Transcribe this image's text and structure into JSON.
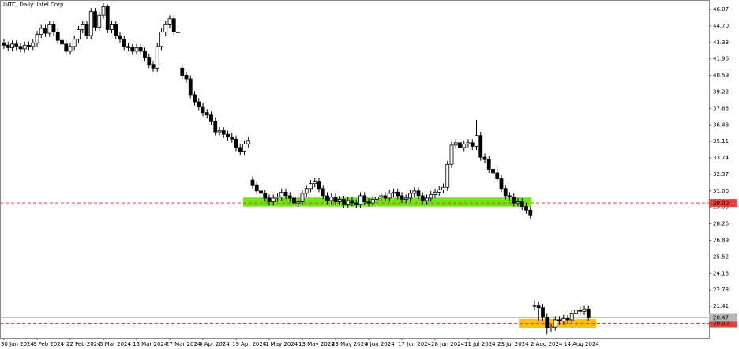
{
  "chart_data": {
    "type": "candlestick",
    "title": "INTC, Daily:  Intel Corp",
    "categories": [
      "30 Jan 2024",
      null,
      null,
      null,
      null,
      null,
      null,
      null,
      "9 Feb 2024",
      null,
      null,
      null,
      null,
      null,
      null,
      null,
      "22 Feb 2024",
      null,
      null,
      null,
      null,
      null,
      null,
      null,
      "5 Mar 2024",
      null,
      null,
      null,
      null,
      null,
      null,
      null,
      "15 Mar 2024",
      null,
      null,
      null,
      null,
      null,
      null,
      null,
      "27 Mar 2024",
      null,
      null,
      null,
      null,
      null,
      null,
      null,
      "9 Apr 2024",
      null,
      null,
      null,
      null,
      null,
      null,
      null,
      "19 Apr 2024",
      null,
      null,
      null,
      null,
      null,
      null,
      null,
      "1 May 2024",
      null,
      null,
      null,
      null,
      null,
      null,
      null,
      "13 May 2024",
      null,
      null,
      null,
      null,
      null,
      null,
      null,
      "23 May 2024",
      null,
      null,
      null,
      null,
      null,
      null,
      null,
      "5 Jun 2024",
      null,
      null,
      null,
      null,
      null,
      null,
      null,
      "17 Jun 2024",
      null,
      null,
      null,
      null,
      null,
      null,
      null,
      "28 Jun 2024",
      null,
      null,
      null,
      null,
      null,
      null,
      null,
      "11 Jul 2024",
      null,
      null,
      null,
      null,
      null,
      null,
      null,
      "23 Jul 2024",
      null,
      null,
      null,
      null,
      null,
      null,
      null,
      "2 Aug 2024",
      null,
      null,
      null,
      null,
      null,
      null,
      null,
      "14 Aug 2024",
      null,
      null,
      null,
      null,
      null
    ],
    "open": [
      43.3,
      43.1,
      42.9,
      43.2,
      43.0,
      42.8,
      43.1,
      43.0,
      43.3,
      44.0,
      44.5,
      44.1,
      44.8,
      44.2,
      43.5,
      43.2,
      42.6,
      43.0,
      43.6,
      44.4,
      44.8,
      43.9,
      45.9,
      44.6,
      45.6,
      46.3,
      44.4,
      44.8,
      43.9,
      43.6,
      43.0,
      42.9,
      42.6,
      42.9,
      42.6,
      42.1,
      41.5,
      41.2,
      43.0,
      44.2,
      44.8,
      45.3,
      44.2,
      41.2,
      40.6,
      40.3,
      39.0,
      38.4,
      38.0,
      37.5,
      37.3,
      36.8,
      35.9,
      36.0,
      35.7,
      35.5,
      35.3,
      34.6,
      34.3,
      34.9,
      31.9,
      31.5,
      31.0,
      30.8,
      30.4,
      30.1,
      30.4,
      30.5,
      30.9,
      30.6,
      30.4,
      30.0,
      30.1,
      30.8,
      31.2,
      31.6,
      31.8,
      31.2,
      30.6,
      30.2,
      30.5,
      30.1,
      30.3,
      29.9,
      30.2,
      30.0,
      29.9,
      30.6,
      30.1,
      30.0,
      30.3,
      30.5,
      30.6,
      30.4,
      30.8,
      30.9,
      30.6,
      30.3,
      30.4,
      30.8,
      31.0,
      30.6,
      30.2,
      30.4,
      30.7,
      30.9,
      31.1,
      31.3,
      33.2,
      34.8,
      35.0,
      34.6,
      34.9,
      35.0,
      34.7,
      35.6,
      33.8,
      33.6,
      32.8,
      32.5,
      32.0,
      31.2,
      30.6,
      30.5,
      30.0,
      30.1,
      29.7,
      29.4,
      21.4,
      21.5,
      21.3,
      20.5,
      19.6,
      19.7,
      20.3,
      20.2,
      20.4,
      20.3,
      20.8,
      21.1,
      21.0,
      21.2
    ],
    "high": [
      43.6,
      43.4,
      43.5,
      43.5,
      43.3,
      43.4,
      43.4,
      43.6,
      44.3,
      44.8,
      44.8,
      45.1,
      45.1,
      44.5,
      43.8,
      43.5,
      43.3,
      43.9,
      44.7,
      45.1,
      45.1,
      46.2,
      46.2,
      45.9,
      46.6,
      46.5,
      45.1,
      45.1,
      44.2,
      43.9,
      43.3,
      43.2,
      43.2,
      43.2,
      42.9,
      42.4,
      41.8,
      43.3,
      44.5,
      45.1,
      45.6,
      45.6,
      44.5,
      41.5,
      40.9,
      40.6,
      39.3,
      38.7,
      38.3,
      37.8,
      37.6,
      37.1,
      36.3,
      36.3,
      36.0,
      35.8,
      35.6,
      34.9,
      35.2,
      35.5,
      32.2,
      31.8,
      31.3,
      31.1,
      30.7,
      30.7,
      30.8,
      31.2,
      31.2,
      30.9,
      30.7,
      30.4,
      31.1,
      31.5,
      31.9,
      32.1,
      32.1,
      31.5,
      30.9,
      30.8,
      30.8,
      30.6,
      30.6,
      30.5,
      30.5,
      30.3,
      30.9,
      30.9,
      30.4,
      30.6,
      30.8,
      30.9,
      30.9,
      31.1,
      31.2,
      31.2,
      30.9,
      30.7,
      31.1,
      31.3,
      31.3,
      30.9,
      30.7,
      31.0,
      31.2,
      31.4,
      31.6,
      33.5,
      35.1,
      35.3,
      35.3,
      35.2,
      35.3,
      35.3,
      36.9,
      35.9,
      34.1,
      33.9,
      33.1,
      32.8,
      32.3,
      31.5,
      30.9,
      30.8,
      30.4,
      30.4,
      30.0,
      29.7,
      21.9,
      21.8,
      21.6,
      20.8,
      20.0,
      20.6,
      20.6,
      20.7,
      20.7,
      21.1,
      21.4,
      21.4,
      21.5,
      21.5
    ],
    "low": [
      42.8,
      42.6,
      42.6,
      42.7,
      42.5,
      42.5,
      42.7,
      42.7,
      43.0,
      43.7,
      43.8,
      43.8,
      43.9,
      43.2,
      42.9,
      42.3,
      42.3,
      42.7,
      43.3,
      44.1,
      43.6,
      43.6,
      44.3,
      44.3,
      45.3,
      44.1,
      44.1,
      43.6,
      43.3,
      42.7,
      42.6,
      42.3,
      42.3,
      42.3,
      41.8,
      41.2,
      40.9,
      40.9,
      42.7,
      43.9,
      44.5,
      43.9,
      43.9,
      40.3,
      40.0,
      38.7,
      38.1,
      37.7,
      37.2,
      37.0,
      36.5,
      35.6,
      35.6,
      35.4,
      35.2,
      35.0,
      34.3,
      34.0,
      34.0,
      34.6,
      31.2,
      30.7,
      30.5,
      30.1,
      29.8,
      29.8,
      30.1,
      30.2,
      30.3,
      30.1,
      29.7,
      29.7,
      29.8,
      30.5,
      30.9,
      31.3,
      30.9,
      30.3,
      29.9,
      29.9,
      29.8,
      29.8,
      29.6,
      29.6,
      29.7,
      29.6,
      29.6,
      29.8,
      29.7,
      29.7,
      30.0,
      30.2,
      30.1,
      30.1,
      30.5,
      30.3,
      30.0,
      30.0,
      30.1,
      30.5,
      30.3,
      29.9,
      29.9,
      30.1,
      30.4,
      30.6,
      30.8,
      31.0,
      32.9,
      34.5,
      34.3,
      34.3,
      34.6,
      34.4,
      34.4,
      33.5,
      33.3,
      32.5,
      32.2,
      31.7,
      30.9,
      30.3,
      30.2,
      29.7,
      29.7,
      29.4,
      29.1,
      28.7,
      21.1,
      20.2,
      20.2,
      19.1,
      19.3,
      19.4,
      19.9,
      19.9,
      20.0,
      20.0,
      20.5,
      20.7,
      20.7,
      20.2
    ],
    "close": [
      43.1,
      42.9,
      43.2,
      43.0,
      42.8,
      43.1,
      43.0,
      43.3,
      44.0,
      44.5,
      44.1,
      44.8,
      44.2,
      43.5,
      43.2,
      42.6,
      43.0,
      43.6,
      44.4,
      44.8,
      43.9,
      45.9,
      44.6,
      45.6,
      46.3,
      44.4,
      44.8,
      43.9,
      43.6,
      43.0,
      42.9,
      42.6,
      42.9,
      42.6,
      42.1,
      41.5,
      41.2,
      43.0,
      44.2,
      44.8,
      45.3,
      44.2,
      44.2,
      40.6,
      40.3,
      39.0,
      38.4,
      38.0,
      37.5,
      37.3,
      36.8,
      35.9,
      36.0,
      35.7,
      35.5,
      35.3,
      34.6,
      34.3,
      34.9,
      35.2,
      31.5,
      31.0,
      30.8,
      30.4,
      30.1,
      30.4,
      30.5,
      30.9,
      30.6,
      30.4,
      30.0,
      30.1,
      30.8,
      31.2,
      31.6,
      31.8,
      31.2,
      30.6,
      30.2,
      30.5,
      30.1,
      30.3,
      29.9,
      30.2,
      30.0,
      29.9,
      30.6,
      30.1,
      30.0,
      30.3,
      30.5,
      30.6,
      30.4,
      30.8,
      30.9,
      30.6,
      30.3,
      30.4,
      30.8,
      31.0,
      30.6,
      30.2,
      30.4,
      30.7,
      30.9,
      31.1,
      31.3,
      33.2,
      34.8,
      35.0,
      34.6,
      34.9,
      35.0,
      34.7,
      35.6,
      33.8,
      33.6,
      32.8,
      32.5,
      32.0,
      31.2,
      30.6,
      30.5,
      30.0,
      30.1,
      29.7,
      29.4,
      29.0,
      21.5,
      21.3,
      20.5,
      19.6,
      19.7,
      20.3,
      20.2,
      20.4,
      20.3,
      20.8,
      21.1,
      21.0,
      21.2,
      20.47
    ],
    "ylim": [
      18.79,
      46.86
    ],
    "yticks": [
      46.07,
      {
        "value": 44.7,
        "label": "44.70"
      },
      43.33,
      41.96,
      40.59,
      39.22,
      37.85,
      36.48,
      35.11,
      33.74,
      32.37,
      {
        "value": 31.0,
        "label": "31.00"
      },
      29.63,
      28.26,
      26.89,
      25.52,
      24.15,
      22.78,
      21.41
    ],
    "levels": [
      {
        "value": 30,
        "label": "30.00",
        "color": "#e8403a"
      },
      {
        "value": 20,
        "label": "20.00",
        "color": "#e8403a"
      },
      {
        "value": 20.47,
        "label": "20.47",
        "color": "#b8b8b8"
      }
    ],
    "zones": [
      {
        "ylim": [
          29.7,
          30.45
        ],
        "color": "#6eea10"
      },
      {
        "ylim": [
          19.65,
          20.36
        ],
        "color": "#ffc000"
      }
    ]
  }
}
